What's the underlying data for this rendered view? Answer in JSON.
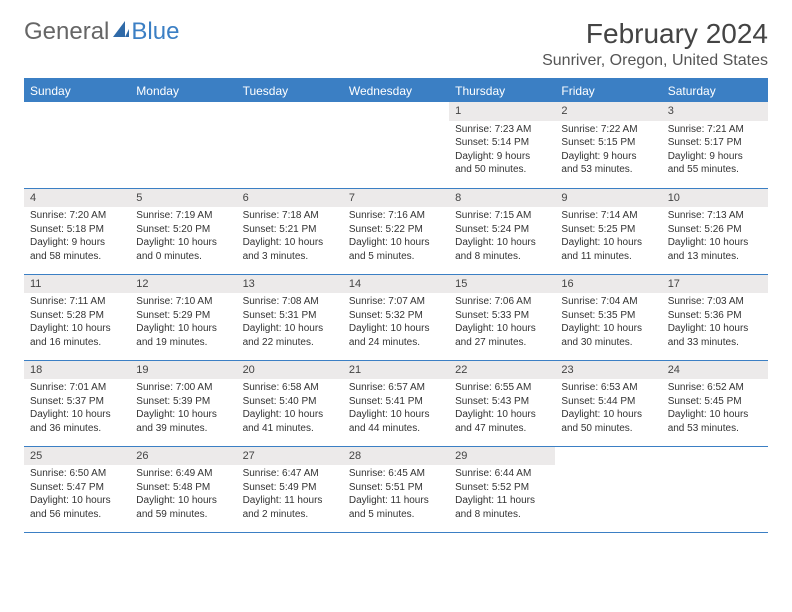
{
  "logo": {
    "text1": "General",
    "text2": "Blue"
  },
  "title": "February 2024",
  "location": "Sunriver, Oregon, United States",
  "colors": {
    "accent": "#3b7fc4",
    "header_bg": "#3b7fc4",
    "header_text": "#ffffff",
    "daynum_bg": "#eceaea",
    "text": "#333333",
    "background": "#ffffff"
  },
  "weekdays": [
    "Sunday",
    "Monday",
    "Tuesday",
    "Wednesday",
    "Thursday",
    "Friday",
    "Saturday"
  ],
  "layout": {
    "first_weekday_index": 4,
    "days_in_month": 29,
    "rows": 5,
    "cols": 7
  },
  "days": {
    "1": {
      "sunrise": "7:23 AM",
      "sunset": "5:14 PM",
      "daylight": "9 hours and 50 minutes."
    },
    "2": {
      "sunrise": "7:22 AM",
      "sunset": "5:15 PM",
      "daylight": "9 hours and 53 minutes."
    },
    "3": {
      "sunrise": "7:21 AM",
      "sunset": "5:17 PM",
      "daylight": "9 hours and 55 minutes."
    },
    "4": {
      "sunrise": "7:20 AM",
      "sunset": "5:18 PM",
      "daylight": "9 hours and 58 minutes."
    },
    "5": {
      "sunrise": "7:19 AM",
      "sunset": "5:20 PM",
      "daylight": "10 hours and 0 minutes."
    },
    "6": {
      "sunrise": "7:18 AM",
      "sunset": "5:21 PM",
      "daylight": "10 hours and 3 minutes."
    },
    "7": {
      "sunrise": "7:16 AM",
      "sunset": "5:22 PM",
      "daylight": "10 hours and 5 minutes."
    },
    "8": {
      "sunrise": "7:15 AM",
      "sunset": "5:24 PM",
      "daylight": "10 hours and 8 minutes."
    },
    "9": {
      "sunrise": "7:14 AM",
      "sunset": "5:25 PM",
      "daylight": "10 hours and 11 minutes."
    },
    "10": {
      "sunrise": "7:13 AM",
      "sunset": "5:26 PM",
      "daylight": "10 hours and 13 minutes."
    },
    "11": {
      "sunrise": "7:11 AM",
      "sunset": "5:28 PM",
      "daylight": "10 hours and 16 minutes."
    },
    "12": {
      "sunrise": "7:10 AM",
      "sunset": "5:29 PM",
      "daylight": "10 hours and 19 minutes."
    },
    "13": {
      "sunrise": "7:08 AM",
      "sunset": "5:31 PM",
      "daylight": "10 hours and 22 minutes."
    },
    "14": {
      "sunrise": "7:07 AM",
      "sunset": "5:32 PM",
      "daylight": "10 hours and 24 minutes."
    },
    "15": {
      "sunrise": "7:06 AM",
      "sunset": "5:33 PM",
      "daylight": "10 hours and 27 minutes."
    },
    "16": {
      "sunrise": "7:04 AM",
      "sunset": "5:35 PM",
      "daylight": "10 hours and 30 minutes."
    },
    "17": {
      "sunrise": "7:03 AM",
      "sunset": "5:36 PM",
      "daylight": "10 hours and 33 minutes."
    },
    "18": {
      "sunrise": "7:01 AM",
      "sunset": "5:37 PM",
      "daylight": "10 hours and 36 minutes."
    },
    "19": {
      "sunrise": "7:00 AM",
      "sunset": "5:39 PM",
      "daylight": "10 hours and 39 minutes."
    },
    "20": {
      "sunrise": "6:58 AM",
      "sunset": "5:40 PM",
      "daylight": "10 hours and 41 minutes."
    },
    "21": {
      "sunrise": "6:57 AM",
      "sunset": "5:41 PM",
      "daylight": "10 hours and 44 minutes."
    },
    "22": {
      "sunrise": "6:55 AM",
      "sunset": "5:43 PM",
      "daylight": "10 hours and 47 minutes."
    },
    "23": {
      "sunrise": "6:53 AM",
      "sunset": "5:44 PM",
      "daylight": "10 hours and 50 minutes."
    },
    "24": {
      "sunrise": "6:52 AM",
      "sunset": "5:45 PM",
      "daylight": "10 hours and 53 minutes."
    },
    "25": {
      "sunrise": "6:50 AM",
      "sunset": "5:47 PM",
      "daylight": "10 hours and 56 minutes."
    },
    "26": {
      "sunrise": "6:49 AM",
      "sunset": "5:48 PM",
      "daylight": "10 hours and 59 minutes."
    },
    "27": {
      "sunrise": "6:47 AM",
      "sunset": "5:49 PM",
      "daylight": "11 hours and 2 minutes."
    },
    "28": {
      "sunrise": "6:45 AM",
      "sunset": "5:51 PM",
      "daylight": "11 hours and 5 minutes."
    },
    "29": {
      "sunrise": "6:44 AM",
      "sunset": "5:52 PM",
      "daylight": "11 hours and 8 minutes."
    }
  },
  "labels": {
    "sunrise": "Sunrise: ",
    "sunset": "Sunset: ",
    "daylight": "Daylight: "
  }
}
